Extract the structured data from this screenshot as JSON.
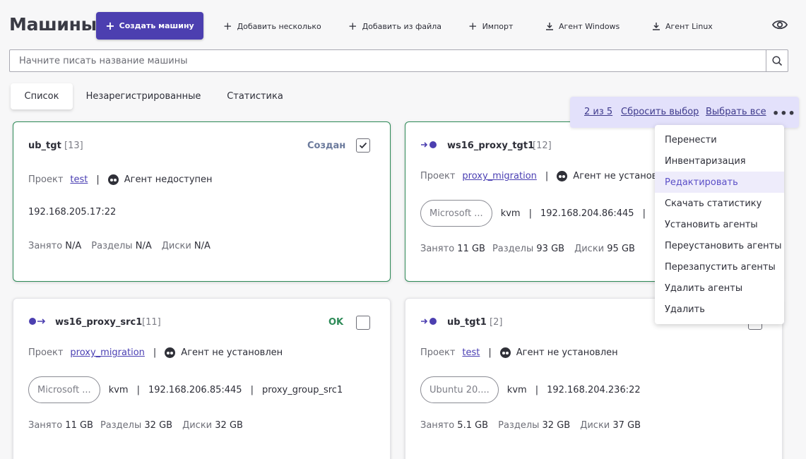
{
  "header": {
    "title": "Машины",
    "create_btn": "Создать машину",
    "toolbar": [
      {
        "label": "Добавить несколько",
        "icon": "plus-icon"
      },
      {
        "label": "Добавить из файла",
        "icon": "plus-icon"
      },
      {
        "label": "Импорт",
        "icon": "plus-icon"
      },
      {
        "label": "Агент Windows",
        "icon": "download-icon"
      },
      {
        "label": "Агент Linux",
        "icon": "download-icon"
      }
    ]
  },
  "search": {
    "placeholder": "Начните писать название машины"
  },
  "tabs": [
    "Список",
    "Незарегистрированные",
    "Статистика"
  ],
  "selection": {
    "count": "2 из 5",
    "reset": "Сбросить выбор",
    "select_all": "Выбрать все"
  },
  "menu": [
    "Перенести",
    "Инвентаризация",
    "Редактировать",
    "Скачать статистику",
    "Установить агенты",
    "Переустановить агенты",
    "Перезапустить агенты",
    "Удалить агенты",
    "Удалить"
  ],
  "labels": {
    "project": "Проект",
    "busy": "Занято",
    "parts": "Разделы",
    "disks": "Диски"
  },
  "cards": [
    {
      "name": "ub_tgt",
      "num": "[13]",
      "status": "Создан",
      "project": "test",
      "agent": "Агент недоступен",
      "address": "192.168.205.17:22",
      "busy": "N/A",
      "parts": "N/A",
      "disks": "N/A"
    },
    {
      "name": "ws16_proxy_tgt1",
      "num": "[12]",
      "project": "proxy_migration",
      "agent": "Агент не установлен",
      "os": "Microsoft ...",
      "virt": "kvm",
      "address": "192.168.204.86:445",
      "busy": "11 GB",
      "parts": "93 GB",
      "disks": "95 GB"
    },
    {
      "name": "ws16_proxy_src1",
      "num": "[11]",
      "status": "OK",
      "project": "proxy_migration",
      "agent": "Агент не установлен",
      "os": "Microsoft ...",
      "virt": "kvm",
      "address": "192.168.206.85:445",
      "group": "proxy_group_src1",
      "busy": "11 GB",
      "parts": "32 GB",
      "disks": "32 GB"
    },
    {
      "name": "ub_tgt1",
      "num": "[2]",
      "project": "test",
      "agent": "Агент не установлен",
      "os": "Ubuntu 20....",
      "virt": "kvm",
      "address": "192.168.204.236:22",
      "busy": "5.1 GB",
      "parts": "32 GB",
      "disks": "37 GB"
    }
  ],
  "colors": {
    "accent": "#4c3fb0",
    "ok": "#2d8a57",
    "created": "#6b7a9c"
  }
}
